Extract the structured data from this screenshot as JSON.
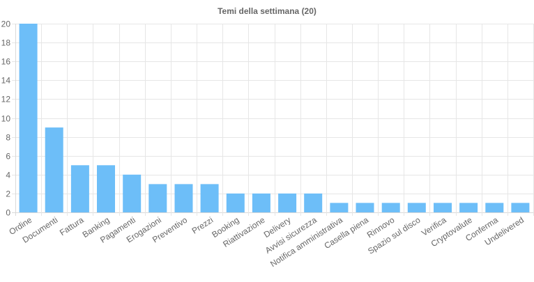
{
  "chart_data": {
    "type": "bar",
    "title": "Temi della settimana (20)",
    "categories": [
      "Ordine",
      "Documenti",
      "Fattura",
      "Banking",
      "Pagamenti",
      "Erogazioni",
      "Preventivo",
      "Prezzi",
      "Booking",
      "Riattivazione",
      "Delivery",
      "Avvisi sicurezza",
      "Notifica amministrativa",
      "Casella piena",
      "Rinnovo",
      "Spazio sul disco",
      "Verifica",
      "Cryptovalute",
      "Conferma",
      "Undelivered"
    ],
    "values": [
      20,
      9,
      5,
      5,
      4,
      3,
      3,
      3,
      2,
      2,
      2,
      2,
      1,
      1,
      1,
      1,
      1,
      1,
      1,
      1
    ],
    "ylim": [
      0,
      20
    ],
    "yticks": [
      0,
      2,
      4,
      6,
      8,
      10,
      12,
      14,
      16,
      18,
      20
    ],
    "grid": true,
    "legend": "none",
    "bar_color": "#6dbef8"
  }
}
